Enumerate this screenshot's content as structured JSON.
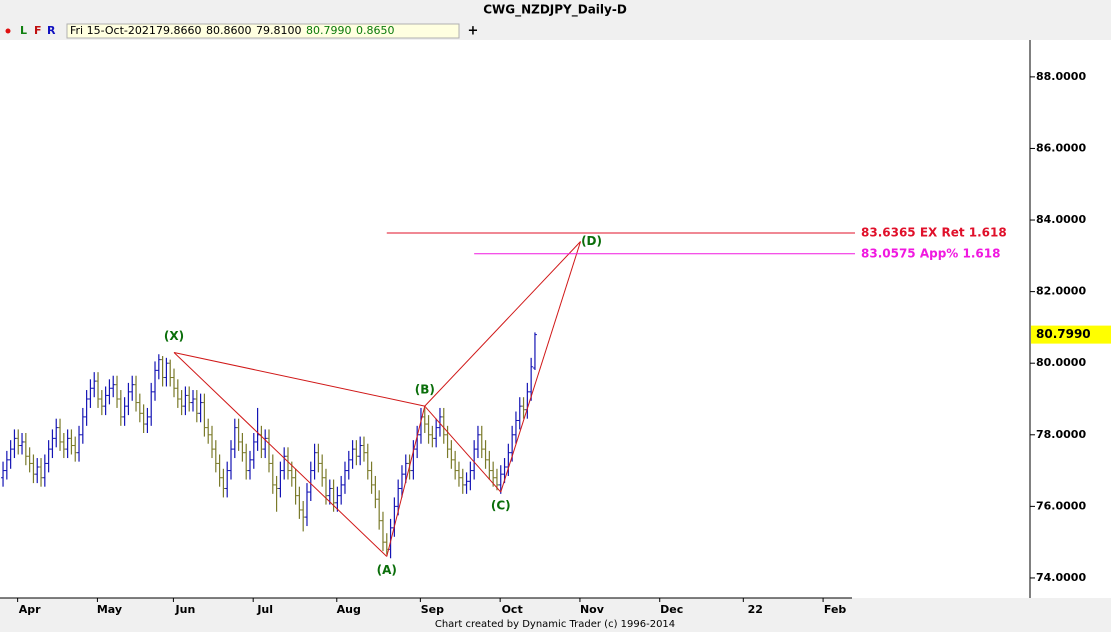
{
  "chart_data": {
    "type": "ohlc",
    "title": "CWG_NZDJPY_Daily-D",
    "toolbar": {
      "buttons": [
        "L",
        "F",
        "R"
      ],
      "plus": "+",
      "info": [
        "Fri 15-Oct-2021",
        "79.8660",
        "80.8600",
        "79.8100",
        "80.7990",
        "0.8650"
      ]
    },
    "footer": "Chart created by Dynamic Trader  (c) 1996-2014",
    "xlim": [
      -0.8,
      270.3
    ],
    "ylim": [
      73.44,
      89.03
    ],
    "yticks": [
      {
        "value": 74,
        "label": "74.0000"
      },
      {
        "value": 76,
        "label": "76.0000"
      },
      {
        "value": 78,
        "label": "78.0000"
      },
      {
        "value": 80,
        "label": "80.0000"
      },
      {
        "value": 82,
        "label": "82.0000"
      },
      {
        "value": 84,
        "label": "84.0000"
      },
      {
        "value": 86,
        "label": "86.0000"
      },
      {
        "value": 88,
        "label": "88.0000"
      }
    ],
    "xticks": [
      {
        "value": 7,
        "label": "Apr"
      },
      {
        "value": 28,
        "label": "May"
      },
      {
        "value": 48,
        "label": "Jun"
      },
      {
        "value": 69,
        "label": "Jul"
      },
      {
        "value": 91,
        "label": "Aug"
      },
      {
        "value": 113,
        "label": "Sep"
      },
      {
        "value": 134,
        "label": "Oct"
      },
      {
        "value": 155,
        "label": "Nov"
      },
      {
        "value": 176,
        "label": "Dec"
      },
      {
        "value": 198,
        "label": "22"
      },
      {
        "value": 219,
        "label": "Feb"
      }
    ],
    "up_color": "#1414b4",
    "down_color": "#7a7a2a",
    "open": [
      76.8,
      77.0,
      77.3,
      77.6,
      77.9,
      77.7,
      77.8,
      77.4,
      77.2,
      76.9,
      77.1,
      76.8,
      77.2,
      77.6,
      77.9,
      78.2,
      77.8,
      77.6,
      77.9,
      77.7,
      77.5,
      78.0,
      78.5,
      79.0,
      79.3,
      79.5,
      79.0,
      78.8,
      79.1,
      79.3,
      79.4,
      79.0,
      78.5,
      78.8,
      79.2,
      79.4,
      78.9,
      78.6,
      78.3,
      78.5,
      79.2,
      79.8,
      80.1,
      79.6,
      80.0,
      79.6,
      79.3,
      79.0,
      78.8,
      79.1,
      78.9,
      79.0,
      78.6,
      78.9,
      78.2,
      78.0,
      77.6,
      77.2,
      76.8,
      76.5,
      77.0,
      77.6,
      78.2,
      77.8,
      77.5,
      77.0,
      77.3,
      77.8,
      78.0,
      77.6,
      77.9,
      77.2,
      76.6,
      76.5,
      77.0,
      77.4,
      77.0,
      76.8,
      76.3,
      75.9,
      75.7,
      76.4,
      77.0,
      77.5,
      77.2,
      76.8,
      76.3,
      76.5,
      76.1,
      76.3,
      76.6,
      77.0,
      77.3,
      77.6,
      77.4,
      77.7,
      77.5,
      77.0,
      76.6,
      76.2,
      75.6,
      75.0,
      74.8,
      75.4,
      76.0,
      76.5,
      76.9,
      77.2,
      77.0,
      77.6,
      78.0,
      78.5,
      78.3,
      78.0,
      77.9,
      78.2,
      78.5,
      78.0,
      77.6,
      77.3,
      77.0,
      76.8,
      76.6,
      76.7,
      77.0,
      77.6,
      78.0,
      77.6,
      77.3,
      77.0,
      76.8,
      76.6,
      76.9,
      77.1,
      77.5,
      78.0,
      78.4,
      78.8,
      78.7,
      79.2,
      79.866
    ],
    "high": [
      77.25,
      77.55,
      77.85,
      78.15,
      78.15,
      78.05,
      78.05,
      77.65,
      77.45,
      77.35,
      77.35,
      77.45,
      77.85,
      78.15,
      78.45,
      78.45,
      78.05,
      78.15,
      78.15,
      77.95,
      78.25,
      78.75,
      79.25,
      79.55,
      79.75,
      79.75,
      79.25,
      79.35,
      79.55,
      79.65,
      79.65,
      79.25,
      79.05,
      79.45,
      79.65,
      79.65,
      79.15,
      78.85,
      78.75,
      79.45,
      80.05,
      80.25,
      80.2,
      80.15,
      80.1,
      79.85,
      79.55,
      79.25,
      79.35,
      79.35,
      79.25,
      79.25,
      79.15,
      79.15,
      78.45,
      78.25,
      77.85,
      77.45,
      77.05,
      77.25,
      77.85,
      78.45,
      78.45,
      78.05,
      77.75,
      77.55,
      78.05,
      78.75,
      78.25,
      78.15,
      78.15,
      77.45,
      76.85,
      77.25,
      77.65,
      77.65,
      77.25,
      77.05,
      76.55,
      76.15,
      76.65,
      77.25,
      77.75,
      77.75,
      77.45,
      77.05,
      76.75,
      76.75,
      76.55,
      76.85,
      77.25,
      77.55,
      77.85,
      77.85,
      77.95,
      77.95,
      77.75,
      77.25,
      76.85,
      76.45,
      75.85,
      75.25,
      75.65,
      76.25,
      76.75,
      77.15,
      77.45,
      77.45,
      77.85,
      78.25,
      78.75,
      78.75,
      78.55,
      78.25,
      78.45,
      78.75,
      78.75,
      78.25,
      77.85,
      77.55,
      77.25,
      77.05,
      76.95,
      77.25,
      77.85,
      78.25,
      78.25,
      77.85,
      77.55,
      77.25,
      77.05,
      77.15,
      77.35,
      77.75,
      78.25,
      78.65,
      79.05,
      79.05,
      79.45,
      80.15,
      80.86
    ],
    "low": [
      76.55,
      76.75,
      77.05,
      77.35,
      77.45,
      77.45,
      77.15,
      76.95,
      76.65,
      76.65,
      76.55,
      76.55,
      76.95,
      77.35,
      77.65,
      77.55,
      77.35,
      77.35,
      77.45,
      77.25,
      77.25,
      77.75,
      78.25,
      78.75,
      79.05,
      78.75,
      78.55,
      78.55,
      78.85,
      79.05,
      78.75,
      78.25,
      78.25,
      78.55,
      78.95,
      78.65,
      78.35,
      78.05,
      78.05,
      78.25,
      78.95,
      79.55,
      79.35,
      79.35,
      79.35,
      79.05,
      78.75,
      78.55,
      78.55,
      78.65,
      78.65,
      78.35,
      78.35,
      77.95,
      77.75,
      77.35,
      76.95,
      76.55,
      76.25,
      76.25,
      76.75,
      77.35,
      77.55,
      77.25,
      76.75,
      76.75,
      77.05,
      77.55,
      77.35,
      77.35,
      76.95,
      76.35,
      75.85,
      76.25,
      76.75,
      76.75,
      76.55,
      76.05,
      75.65,
      75.3,
      75.45,
      76.15,
      76.75,
      76.95,
      76.55,
      76.05,
      76.05,
      75.85,
      75.85,
      76.05,
      76.35,
      76.75,
      77.05,
      77.15,
      77.15,
      77.25,
      76.75,
      76.35,
      75.95,
      75.35,
      74.75,
      74.65,
      74.55,
      75.15,
      75.75,
      76.25,
      76.65,
      76.75,
      76.75,
      77.35,
      77.75,
      78.05,
      77.75,
      77.65,
      77.65,
      77.95,
      77.75,
      77.35,
      77.05,
      76.75,
      76.55,
      76.35,
      76.35,
      76.45,
      76.75,
      77.35,
      77.35,
      77.05,
      76.75,
      76.55,
      76.45,
      76.35,
      76.65,
      76.85,
      77.25,
      77.75,
      78.15,
      78.45,
      78.45,
      78.95,
      79.81
    ],
    "close": [
      77.0,
      77.3,
      77.6,
      77.9,
      77.7,
      77.8,
      77.4,
      77.2,
      76.9,
      77.1,
      76.8,
      77.2,
      77.6,
      77.9,
      78.2,
      77.8,
      77.6,
      77.9,
      77.7,
      77.5,
      78.0,
      78.5,
      79.0,
      79.3,
      79.5,
      79.0,
      78.8,
      79.1,
      79.3,
      79.4,
      79.0,
      78.5,
      78.8,
      79.2,
      79.4,
      78.9,
      78.6,
      78.3,
      78.5,
      79.2,
      79.8,
      80.1,
      79.6,
      80.0,
      79.6,
      79.3,
      79.0,
      78.8,
      79.1,
      78.9,
      79.0,
      78.6,
      78.9,
      78.2,
      78.0,
      77.6,
      77.2,
      76.8,
      76.5,
      77.0,
      77.6,
      78.2,
      77.8,
      77.5,
      77.0,
      77.3,
      77.8,
      78.0,
      77.6,
      77.9,
      77.2,
      76.6,
      76.5,
      77.0,
      77.4,
      77.0,
      76.8,
      76.3,
      75.9,
      75.7,
      76.4,
      77.0,
      77.5,
      77.2,
      76.8,
      76.3,
      76.5,
      76.1,
      76.3,
      76.6,
      77.0,
      77.3,
      77.6,
      77.4,
      77.7,
      77.5,
      77.0,
      76.6,
      76.2,
      75.6,
      75.0,
      74.8,
      75.4,
      76.0,
      76.5,
      76.9,
      77.2,
      77.0,
      77.6,
      78.0,
      78.5,
      78.3,
      78.0,
      77.9,
      78.2,
      78.5,
      78.0,
      77.6,
      77.3,
      77.0,
      76.8,
      76.6,
      76.7,
      77.0,
      77.6,
      78.0,
      77.6,
      77.3,
      77.0,
      76.8,
      76.6,
      76.9,
      77.1,
      77.5,
      78.0,
      78.4,
      78.8,
      78.7,
      79.2,
      79.9,
      80.799
    ],
    "last": {
      "value": 80.799,
      "label": "80.7990"
    },
    "pattern": {
      "color": "#d01818",
      "label_color": "#0a6e0a",
      "points": [
        {
          "label": "(X)",
          "x": 45,
          "y": 80.3,
          "label_position": "above"
        },
        {
          "label": "(A)",
          "x": 101,
          "y": 74.6,
          "label_position": "below"
        },
        {
          "label": "(B)",
          "x": 111,
          "y": 78.8,
          "label_position": "above"
        },
        {
          "label": "(C)",
          "x": 131,
          "y": 76.4,
          "label_position": "below"
        },
        {
          "label": "(D)",
          "x": 152,
          "y": 83.4,
          "label_position": "right"
        }
      ]
    },
    "levels": [
      {
        "value": 83.6365,
        "label": "83.6365 EX Ret 1.618",
        "color": "#e0102a",
        "from": 101
      },
      {
        "value": 83.0575,
        "label": "83.0575 App% 1.618",
        "color": "#f018e0",
        "from": 124
      }
    ]
  }
}
